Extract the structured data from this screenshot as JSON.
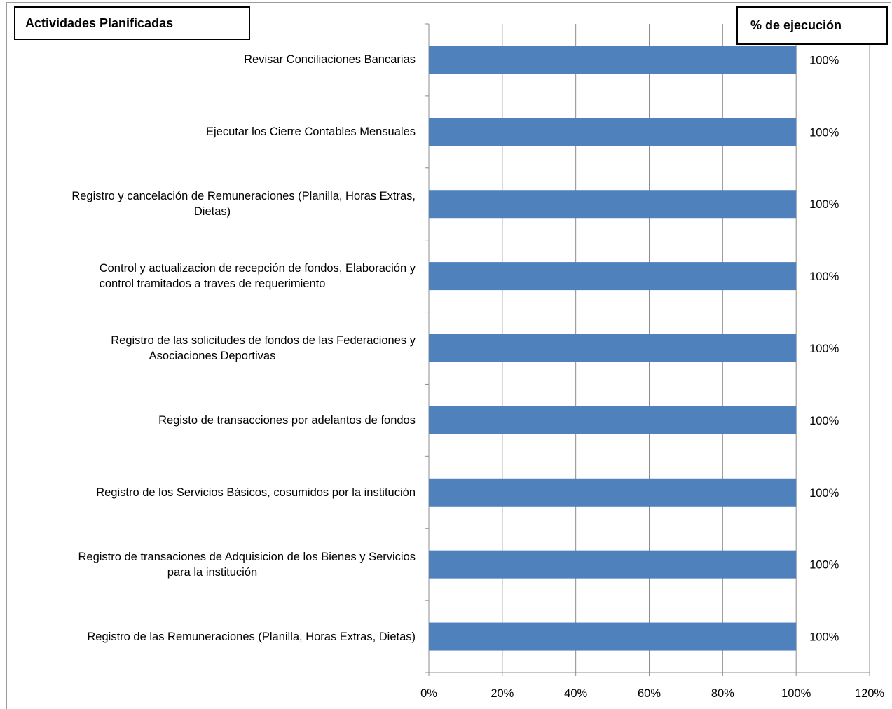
{
  "chart_data": {
    "type": "bar",
    "orientation": "horizontal",
    "title_left": "Actividades Planificadas",
    "title_right": "% de ejecución",
    "categories": [
      "Revisar Conciliaciones Bancarias",
      "Ejecutar los Cierre Contables Mensuales",
      "Registro y cancelación de Remuneraciones (Planilla, Horas Extras, Dietas)",
      "Control y actualizacion de recepción de fondos, Elaboración y control tramitados a traves de requerimiento",
      "Registro de las solicitudes de fondos de las Federaciones y Asociaciones Deportivas",
      "Registo de transacciones por adelantos de fondos",
      "Registro de los Servicios Básicos, cosumidos por la institución",
      "Registro de transaciones de Adquisicion de los Bienes y Servicios para la institución",
      "Registro de las Remuneraciones (Planilla, Horas Extras, Dietas)"
    ],
    "category_lines": [
      [
        "Revisar Conciliaciones Bancarias"
      ],
      [
        "Ejecutar los Cierre Contables Mensuales"
      ],
      [
        "Registro y cancelación de Remuneraciones (Planilla, Horas Extras,",
        "Dietas)"
      ],
      [
        "Control y actualizacion de recepción de fondos, Elaboración y",
        "control tramitados a traves de requerimiento"
      ],
      [
        "Registro de las solicitudes de fondos de las Federaciones y",
        "Asociaciones Deportivas"
      ],
      [
        "Registo de transacciones por adelantos de fondos"
      ],
      [
        "Registro de los Servicios Básicos, cosumidos por la institución"
      ],
      [
        "Registro de transaciones de Adquisicion de los Bienes y Servicios",
        "para la institución"
      ],
      [
        "Registro de las Remuneraciones (Planilla, Horas Extras, Dietas)"
      ]
    ],
    "values": [
      1,
      1,
      1,
      1,
      1,
      1,
      1,
      1,
      1
    ],
    "data_labels": [
      "100%",
      "100%",
      "100%",
      "100%",
      "100%",
      "100%",
      "100%",
      "100%",
      "100%"
    ],
    "xlim": [
      0,
      1.2
    ],
    "x_ticks": [
      0,
      0.2,
      0.4,
      0.6,
      0.8,
      1.0,
      1.2
    ],
    "x_tick_labels": [
      "0%",
      "20%",
      "40%",
      "60%",
      "80%",
      "100%",
      "120%"
    ],
    "grid": "vertical",
    "bar_color": "#4f81bd",
    "grid_color": "#8c8c8c"
  }
}
